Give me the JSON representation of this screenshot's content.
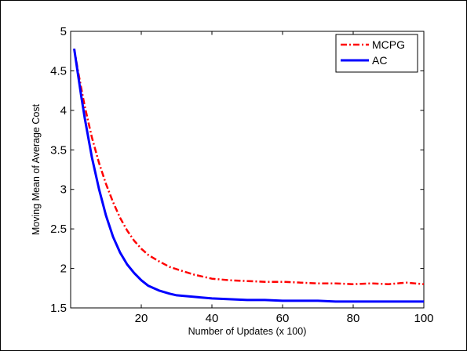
{
  "chart_data": {
    "type": "line",
    "title": "",
    "xlabel": "Number of Updates (x 100)",
    "ylabel": "Moving Mean of Average Cost",
    "xlim": [
      0,
      100
    ],
    "ylim": [
      1.5,
      5
    ],
    "xticks": [
      20,
      40,
      60,
      80,
      100
    ],
    "xtick_labels": [
      "20",
      "40",
      "60",
      "80",
      "100"
    ],
    "yticks": [
      1.5,
      2,
      2.5,
      3,
      3.5,
      4,
      4.5,
      5
    ],
    "ytick_labels": [
      "1.5",
      "2",
      "2.5",
      "3",
      "3.5",
      "4",
      "4.5",
      "5"
    ],
    "grid": false,
    "legend_position": "top-right",
    "series": [
      {
        "name": "MCPG",
        "color": "#ff0000",
        "style": "dash-dot",
        "x": [
          1,
          2,
          3,
          4,
          6,
          8,
          10,
          12,
          14,
          16,
          18,
          20,
          22,
          25,
          28,
          30,
          35,
          40,
          45,
          50,
          55,
          60,
          65,
          70,
          75,
          80,
          85,
          90,
          95,
          100
        ],
        "y": [
          4.78,
          4.52,
          4.28,
          4.05,
          3.66,
          3.34,
          3.07,
          2.84,
          2.64,
          2.48,
          2.35,
          2.25,
          2.17,
          2.09,
          2.02,
          1.99,
          1.92,
          1.87,
          1.85,
          1.84,
          1.83,
          1.83,
          1.82,
          1.81,
          1.81,
          1.8,
          1.81,
          1.8,
          1.82,
          1.8
        ]
      },
      {
        "name": "AC",
        "color": "#0000ff",
        "style": "solid",
        "x": [
          1,
          2,
          3,
          4,
          6,
          8,
          10,
          12,
          14,
          16,
          18,
          20,
          22,
          25,
          28,
          30,
          35,
          40,
          45,
          50,
          55,
          60,
          65,
          70,
          75,
          80,
          85,
          90,
          95,
          100
        ],
        "y": [
          4.78,
          4.48,
          4.18,
          3.9,
          3.41,
          3.01,
          2.67,
          2.4,
          2.2,
          2.05,
          1.94,
          1.85,
          1.78,
          1.72,
          1.68,
          1.66,
          1.64,
          1.62,
          1.61,
          1.6,
          1.6,
          1.59,
          1.59,
          1.59,
          1.58,
          1.58,
          1.58,
          1.58,
          1.58,
          1.58
        ]
      }
    ]
  }
}
